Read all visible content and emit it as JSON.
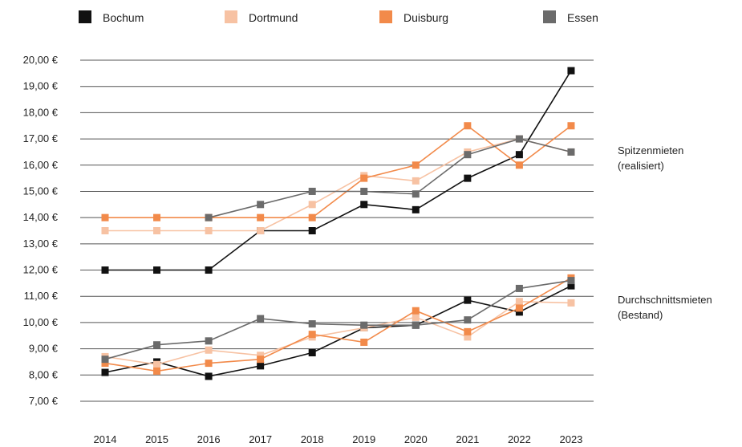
{
  "chart_data": {
    "type": "line",
    "x": [
      "2014",
      "2015",
      "2016",
      "2017",
      "2018",
      "2019",
      "2020",
      "2021",
      "2022",
      "2023"
    ],
    "y_ticks": [
      "7,00 €",
      "8,00 €",
      "9,00 €",
      "10,00 €",
      "11,00 €",
      "12,00 €",
      "13,00 €",
      "14,00 €",
      "15,00 €",
      "16,00 €",
      "17,00 €",
      "18,00 €",
      "19,00 €",
      "20,00 €"
    ],
    "ylim": [
      7,
      20
    ],
    "grid": true,
    "legend_position": "top",
    "legend": [
      {
        "name": "Bochum",
        "color": "#111111"
      },
      {
        "name": "Dortmund",
        "color": "#f7c2a3"
      },
      {
        "name": "Duisburg",
        "color": "#f28a4a"
      },
      {
        "name": "Essen",
        "color": "#6b6b6b"
      }
    ],
    "annotations": [
      {
        "lines": [
          "Spitzenmieten",
          "(realisiert)"
        ],
        "value": 16.0
      },
      {
        "lines": [
          "Durchschnittsmieten",
          "(Bestand)"
        ],
        "value": 10.3
      }
    ],
    "series": [
      {
        "name": "Bochum",
        "group": "Spitzenmieten",
        "color": "#111111",
        "values": [
          12.0,
          12.0,
          12.0,
          13.5,
          13.5,
          14.5,
          14.3,
          15.5,
          16.4,
          19.6
        ]
      },
      {
        "name": "Dortmund",
        "group": "Spitzenmieten",
        "color": "#f7c2a3",
        "values": [
          13.5,
          13.5,
          13.5,
          13.5,
          14.5,
          15.6,
          15.4,
          16.5,
          17.0,
          16.5
        ]
      },
      {
        "name": "Duisburg",
        "group": "Spitzenmieten",
        "color": "#f28a4a",
        "values": [
          14.0,
          14.0,
          14.0,
          14.0,
          14.0,
          15.5,
          16.0,
          17.5,
          16.0,
          17.5
        ]
      },
      {
        "name": "Essen",
        "group": "Spitzenmieten",
        "color": "#6b6b6b",
        "values": [
          null,
          null,
          14.0,
          14.5,
          15.0,
          15.0,
          14.9,
          16.4,
          17.0,
          16.5
        ]
      },
      {
        "name": "Bochum",
        "group": "Durchschnittsmieten",
        "color": "#111111",
        "values": [
          8.1,
          8.5,
          7.95,
          8.35,
          8.85,
          9.8,
          9.9,
          10.85,
          10.4,
          11.4
        ]
      },
      {
        "name": "Dortmund",
        "group": "Durchschnittsmieten",
        "color": "#f7c2a3",
        "values": [
          8.7,
          8.4,
          8.95,
          8.75,
          9.45,
          9.8,
          10.2,
          9.45,
          10.8,
          10.75
        ]
      },
      {
        "name": "Duisburg",
        "group": "Durchschnittsmieten",
        "color": "#f28a4a",
        "values": [
          8.45,
          8.15,
          8.45,
          8.6,
          9.55,
          9.25,
          10.45,
          9.65,
          10.55,
          11.7
        ]
      },
      {
        "name": "Essen",
        "group": "Durchschnittsmieten",
        "color": "#6b6b6b",
        "values": [
          8.6,
          9.15,
          9.3,
          10.15,
          9.95,
          9.9,
          9.9,
          10.1,
          11.3,
          11.6
        ]
      }
    ]
  }
}
